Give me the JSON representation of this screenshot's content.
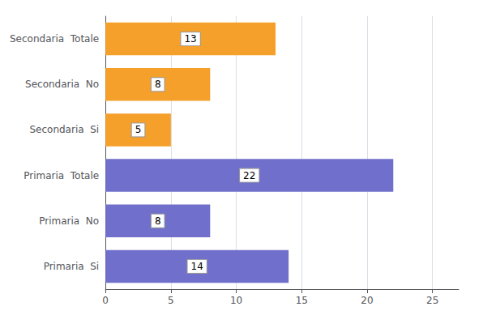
{
  "chart_data": {
    "type": "bar",
    "orientation": "horizontal",
    "categories": [
      "Secondaria  Totale",
      "Secondaria  No",
      "Secondaria  Si",
      "Primaria  Totale",
      "Primaria  No",
      "Primaria  Si"
    ],
    "values": [
      13,
      8,
      5,
      22,
      8,
      14
    ],
    "colors": [
      "#F5A02A",
      "#F5A02A",
      "#F5A02A",
      "#7070CC",
      "#7070CC",
      "#7070CC"
    ],
    "xlim": [
      0,
      27
    ],
    "xticks": [
      0,
      5,
      10,
      15,
      20,
      25
    ],
    "grid": true,
    "data_labels": true
  }
}
